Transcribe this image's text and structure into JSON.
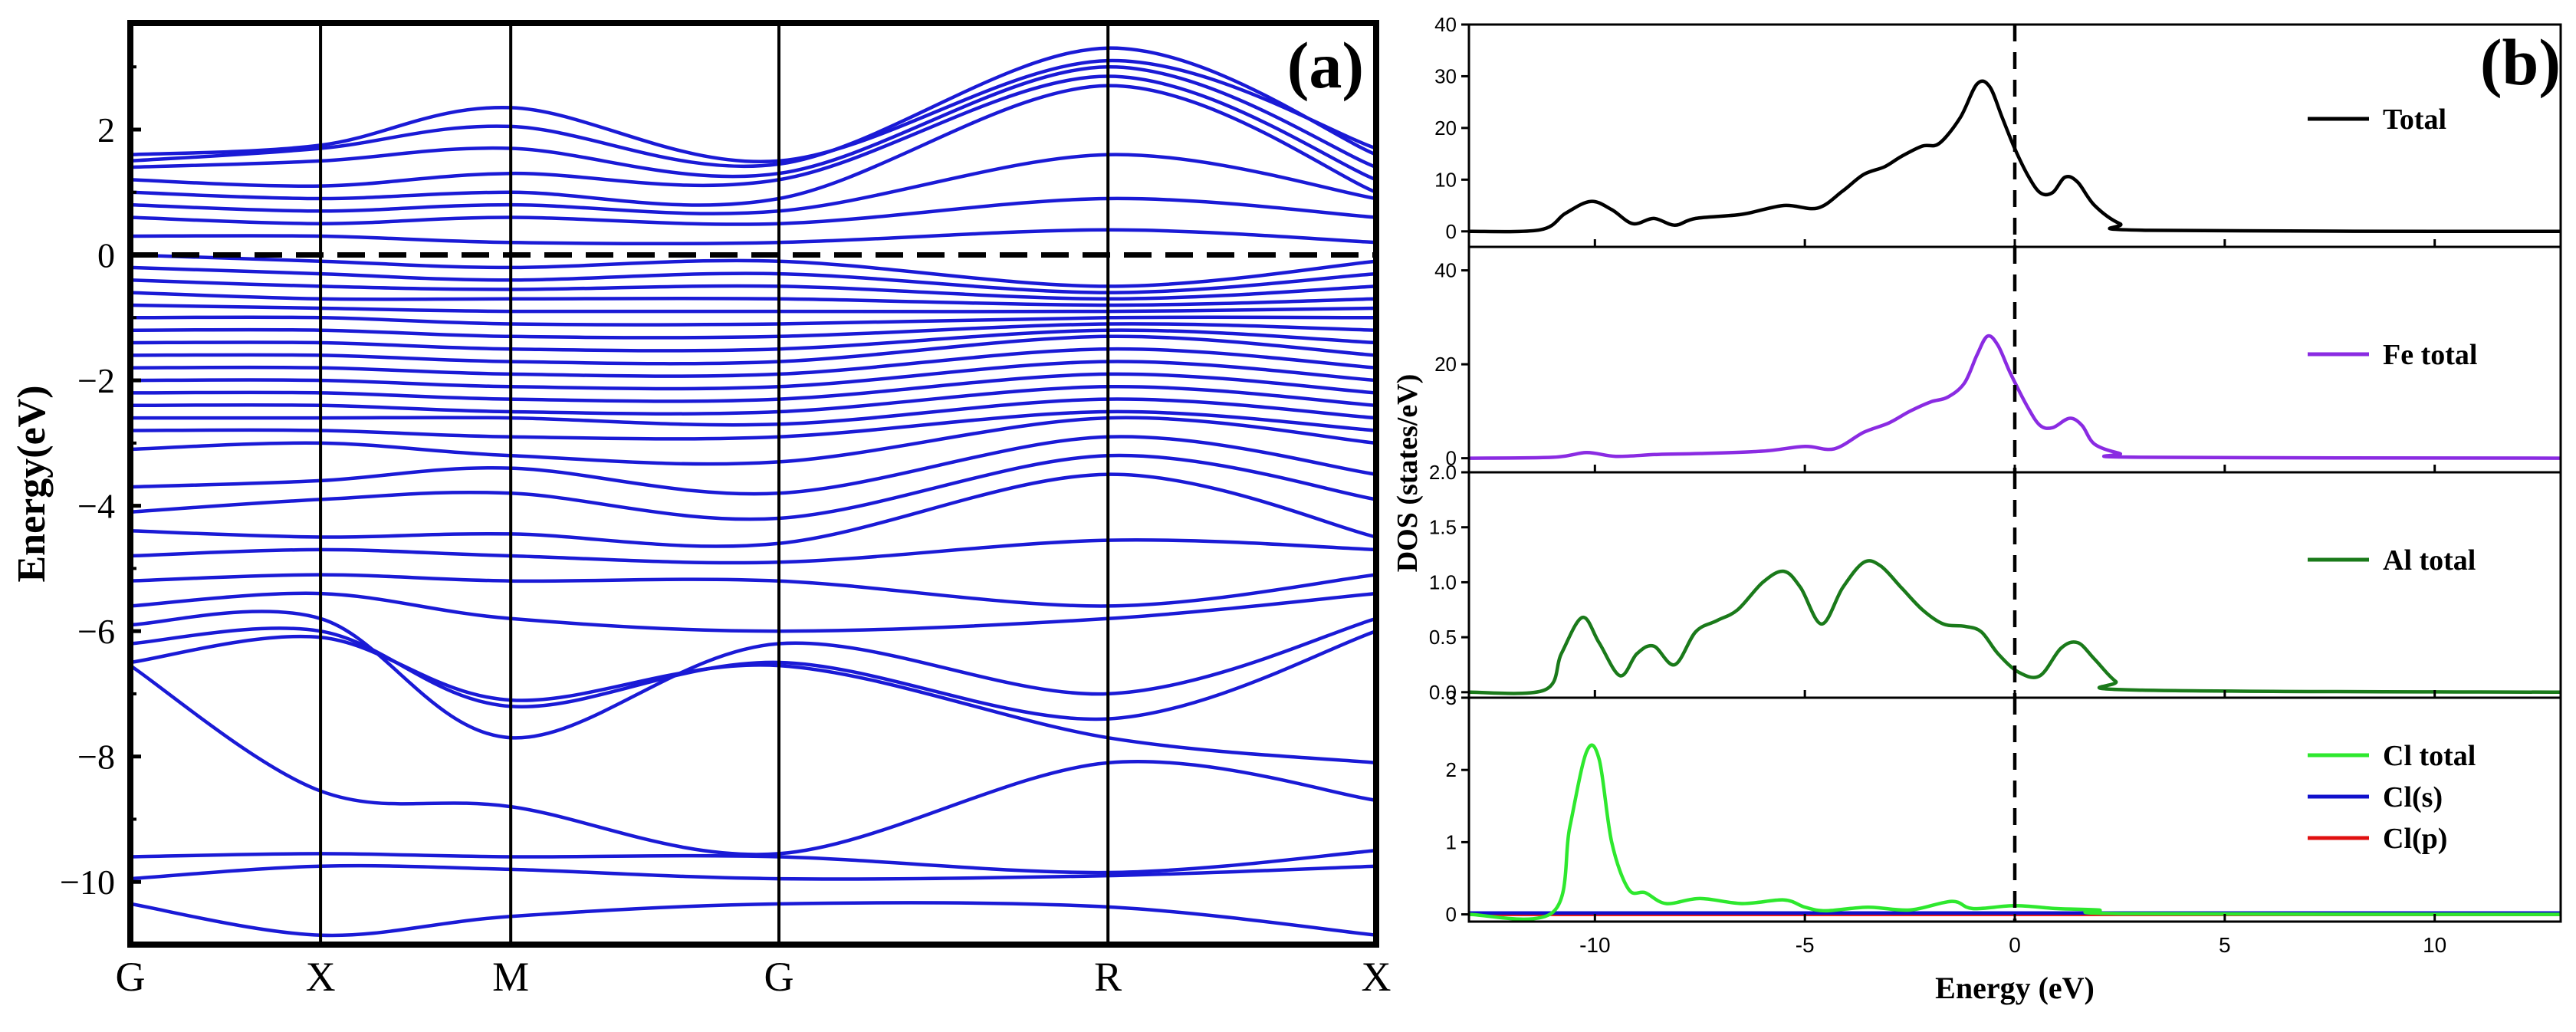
{
  "colors": {
    "band": "#1a1ad6",
    "fermi": "#000000",
    "total": "#000000",
    "fe": "#8a2be2",
    "al": "#1a7a1a",
    "cl": "#2ee82e",
    "cl_s": "#1010cc",
    "cl_p": "#e01010"
  },
  "chart_data": [
    {
      "type": "line",
      "panel_label": "(a)",
      "ylabel": "Energy(eV)",
      "ylim": [
        -11,
        3.7
      ],
      "yticks": [
        2,
        0,
        -2,
        -4,
        -6,
        -8,
        -10
      ],
      "ytick_labels": [
        "2",
        "0",
        "−2",
        "−4",
        "−6",
        "−8",
        "−10"
      ],
      "kpoints": [
        {
          "label": "G",
          "k": 0.0
        },
        {
          "label": "X",
          "k": 1.0
        },
        {
          "label": "M",
          "k": 2.0
        },
        {
          "label": "G",
          "k": 3.41
        },
        {
          "label": "R",
          "k": 5.14
        },
        {
          "label": "X",
          "k": 6.55
        }
      ],
      "fermi_level": 0,
      "bands": [
        [
          -10.35,
          -10.85,
          -10.55,
          -10.35,
          -10.4,
          -10.85
        ],
        [
          -9.95,
          -9.75,
          -9.8,
          -9.95,
          -9.9,
          -9.75
        ],
        [
          -9.6,
          -9.55,
          -9.6,
          -9.6,
          -9.85,
          -9.5
        ],
        [
          -6.55,
          -8.55,
          -8.8,
          -9.55,
          -8.1,
          -8.7
        ],
        [
          -6.5,
          -6.1,
          -7.1,
          -6.55,
          -7.7,
          -8.1
        ],
        [
          -6.2,
          -6.0,
          -7.2,
          -6.5,
          -7.4,
          -6.0
        ],
        [
          -5.9,
          -5.8,
          -7.7,
          -6.2,
          -7.0,
          -5.8
        ],
        [
          -5.6,
          -5.4,
          -5.8,
          -6.0,
          -5.8,
          -5.4
        ],
        [
          -5.2,
          -5.1,
          -5.2,
          -5.2,
          -5.6,
          -5.1
        ],
        [
          -4.8,
          -4.7,
          -4.8,
          -4.9,
          -4.55,
          -4.7
        ],
        [
          -4.4,
          -4.5,
          -4.45,
          -4.6,
          -3.5,
          -4.5
        ],
        [
          -4.1,
          -3.9,
          -3.8,
          -4.2,
          -3.2,
          -3.9
        ],
        [
          -3.7,
          -3.6,
          -3.4,
          -3.8,
          -2.9,
          -3.5
        ],
        [
          -3.1,
          -3.0,
          -3.2,
          -3.3,
          -2.6,
          -3.0
        ],
        [
          -2.8,
          -2.8,
          -2.9,
          -2.9,
          -2.5,
          -2.8
        ],
        [
          -2.6,
          -2.6,
          -2.6,
          -2.7,
          -2.3,
          -2.6
        ],
        [
          -2.4,
          -2.4,
          -2.5,
          -2.5,
          -2.1,
          -2.4
        ],
        [
          -2.2,
          -2.2,
          -2.3,
          -2.3,
          -1.9,
          -2.2
        ],
        [
          -2.0,
          -2.0,
          -2.1,
          -2.1,
          -1.7,
          -2.0
        ],
        [
          -1.8,
          -1.8,
          -1.9,
          -1.9,
          -1.5,
          -1.8
        ],
        [
          -1.6,
          -1.6,
          -1.7,
          -1.7,
          -1.3,
          -1.6
        ],
        [
          -1.4,
          -1.4,
          -1.5,
          -1.5,
          -1.2,
          -1.4
        ],
        [
          -1.2,
          -1.2,
          -1.3,
          -1.3,
          -1.1,
          -1.2
        ],
        [
          -1.0,
          -1.0,
          -1.1,
          -1.1,
          -1.0,
          -1.0
        ],
        [
          -0.8,
          -0.85,
          -0.9,
          -0.9,
          -0.9,
          -0.85
        ],
        [
          -0.6,
          -0.7,
          -0.7,
          -0.7,
          -0.8,
          -0.7
        ],
        [
          -0.4,
          -0.5,
          -0.55,
          -0.5,
          -0.7,
          -0.5
        ],
        [
          -0.2,
          -0.3,
          -0.4,
          -0.3,
          -0.6,
          -0.3
        ],
        [
          0.0,
          -0.1,
          -0.2,
          -0.1,
          -0.5,
          -0.1
        ],
        [
          0.3,
          0.3,
          0.2,
          0.2,
          0.4,
          0.2
        ],
        [
          0.6,
          0.5,
          0.6,
          0.5,
          0.9,
          0.6
        ],
        [
          0.8,
          0.7,
          0.8,
          0.7,
          1.6,
          0.9
        ],
        [
          1.0,
          0.9,
          1.0,
          0.9,
          2.7,
          1.0
        ],
        [
          1.2,
          1.1,
          1.3,
          1.2,
          2.85,
          1.2
        ],
        [
          1.4,
          1.5,
          1.7,
          1.3,
          3.0,
          1.4
        ],
        [
          1.5,
          1.7,
          2.05,
          1.45,
          3.3,
          1.6
        ],
        [
          1.6,
          1.75,
          2.35,
          1.5,
          3.1,
          1.7
        ]
      ]
    },
    {
      "type": "line",
      "panel_label": "(b)",
      "xlabel": "Energy (eV)",
      "ylabel": "DOS (states/eV)",
      "xlim": [
        -13,
        13
      ],
      "xticks": [
        -10,
        -5,
        0,
        5,
        10
      ],
      "xtick_labels": [
        "-10",
        "-5",
        "0",
        "5",
        "10"
      ],
      "fermi_level": 0,
      "panels": [
        {
          "name": "Total",
          "ylim": [
            -3,
            40
          ],
          "yticks": [
            0,
            10,
            20,
            30,
            40
          ],
          "ytick_labels": [
            "0",
            "10",
            "20",
            "30",
            "40"
          ],
          "series": [
            {
              "name": "Total",
              "color_key": "total",
              "x": [
                -13,
                -11.3,
                -10.7,
                -10.1,
                -9.6,
                -9.1,
                -8.6,
                -8.1,
                -7.6,
                -6.5,
                -5.5,
                -4.7,
                -4.1,
                -3.6,
                -3.1,
                -2.7,
                -2.2,
                -1.8,
                -1.3,
                -0.9,
                -0.6,
                -0.3,
                0.0,
                0.3,
                0.6,
                0.9,
                1.2,
                1.5,
                1.9,
                2.5,
                3.2,
                13
              ],
              "y": [
                0,
                0.3,
                3.5,
                5.8,
                4.2,
                1.5,
                2.5,
                1.2,
                2.5,
                3.3,
                5.0,
                4.5,
                7.8,
                11,
                12.5,
                14.5,
                16.5,
                17,
                22,
                28.5,
                28,
                22,
                16,
                11,
                7.5,
                7.5,
                10.5,
                9.5,
                5,
                1.5,
                0.2,
                0
              ]
            }
          ]
        },
        {
          "name": "Fe total",
          "ylim": [
            -3,
            45
          ],
          "yticks": [
            0,
            20,
            40
          ],
          "ytick_labels": [
            "0",
            "20",
            "40"
          ],
          "series": [
            {
              "name": "Fe total",
              "color_key": "fe",
              "x": [
                -13,
                -11,
                -10.2,
                -9.5,
                -8.5,
                -7.5,
                -6,
                -5,
                -4.3,
                -3.6,
                -3,
                -2.5,
                -2,
                -1.6,
                -1.2,
                -0.9,
                -0.65,
                -0.4,
                -0.1,
                0.3,
                0.6,
                0.9,
                1.3,
                1.6,
                1.9,
                2.5,
                3,
                13
              ],
              "y": [
                0,
                0.2,
                1.2,
                0.4,
                0.8,
                1.0,
                1.5,
                2.5,
                2.0,
                5.5,
                7.5,
                10,
                12,
                13,
                16,
                22,
                26,
                24,
                18,
                11,
                7,
                6.5,
                8.5,
                7,
                3,
                1,
                0.2,
                0
              ]
            }
          ]
        },
        {
          "name": "Al total",
          "ylim": [
            -0.05,
            2.0
          ],
          "yticks": [
            0.0,
            0.5,
            1.0,
            1.5,
            2.0
          ],
          "ytick_labels": [
            "0.0",
            "0.5",
            "1.0",
            "1.5",
            "2.0"
          ],
          "series": [
            {
              "name": "Al total",
              "color_key": "al",
              "x": [
                -13,
                -11.2,
                -10.8,
                -10.3,
                -9.9,
                -9.4,
                -9.0,
                -8.6,
                -8.1,
                -7.6,
                -7.1,
                -6.6,
                -6.0,
                -5.5,
                -5.1,
                -4.6,
                -4.1,
                -3.6,
                -3.2,
                -2.7,
                -2.2,
                -1.7,
                -1.2,
                -0.8,
                -0.4,
                0.1,
                0.6,
                1.1,
                1.5,
                1.9,
                2.4,
                2.9,
                13
              ],
              "y": [
                0,
                0.02,
                0.35,
                0.68,
                0.45,
                0.15,
                0.35,
                0.42,
                0.25,
                0.55,
                0.65,
                0.75,
                1.0,
                1.1,
                0.95,
                0.62,
                0.95,
                1.18,
                1.15,
                0.95,
                0.75,
                0.62,
                0.6,
                0.55,
                0.35,
                0.18,
                0.15,
                0.4,
                0.45,
                0.3,
                0.1,
                0.02,
                0
              ]
            }
          ]
        },
        {
          "name": "Cl",
          "ylim": [
            -0.1,
            3.0
          ],
          "yticks": [
            0,
            1,
            2,
            3
          ],
          "ytick_labels": [
            "0",
            "1",
            "2",
            "3"
          ],
          "series": [
            {
              "name": "Cl total",
              "color_key": "cl",
              "x": [
                -13,
                -11.0,
                -10.6,
                -10.2,
                -9.9,
                -9.6,
                -9.2,
                -8.8,
                -8.3,
                -7.5,
                -6.5,
                -5.5,
                -5.0,
                -4.5,
                -3.5,
                -2.5,
                -1.5,
                -1.0,
                0.0,
                1.0,
                2.0,
                2.6,
                13
              ],
              "y": [
                0,
                0.03,
                1.2,
                2.25,
                2.15,
                1.0,
                0.35,
                0.3,
                0.15,
                0.22,
                0.15,
                0.2,
                0.1,
                0.05,
                0.1,
                0.06,
                0.18,
                0.08,
                0.12,
                0.08,
                0.06,
                0.01,
                0
              ]
            },
            {
              "name": "Cl(s)",
              "color_key": "cl_s",
              "x": [
                -13,
                13
              ],
              "y": [
                0.02,
                0.02
              ]
            },
            {
              "name": "Cl(p)",
              "color_key": "cl_p",
              "x": [
                -13,
                13
              ],
              "y": [
                0.0,
                0.0
              ]
            }
          ]
        }
      ]
    }
  ]
}
